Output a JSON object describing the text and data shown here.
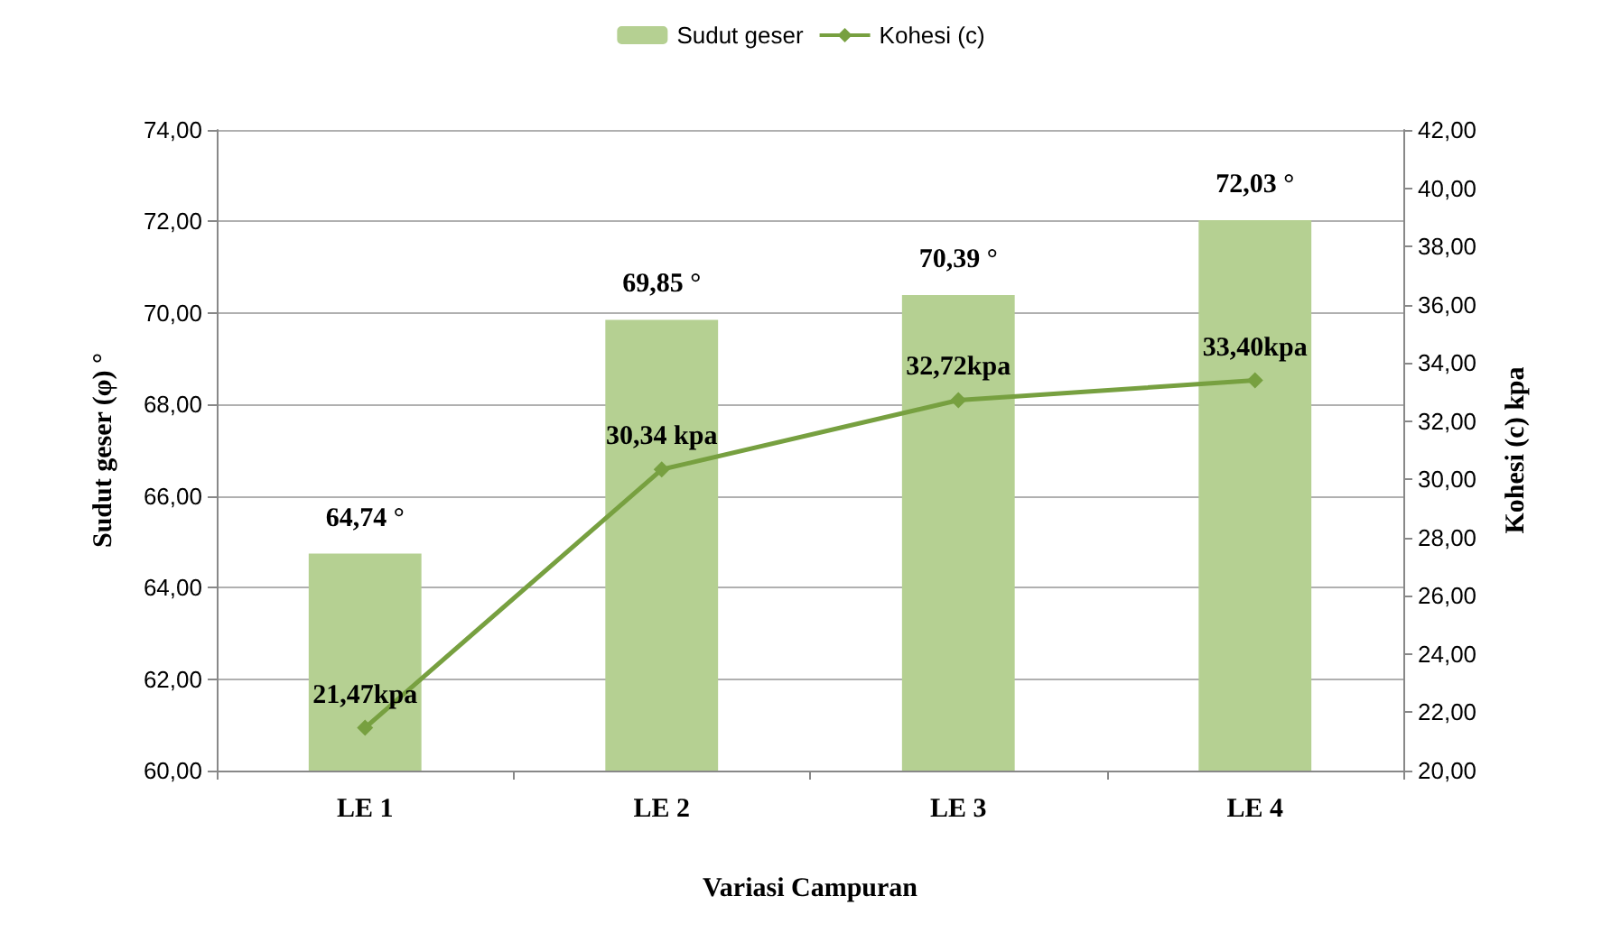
{
  "chart_data": {
    "type": "bar",
    "xlabel": "Variasi Campuran",
    "ylabel": "Sudut geser (φ) °",
    "y2label": "Kohesi (c) kpa",
    "categories": [
      "LE 1",
      "LE 2",
      "LE 3",
      "LE 4"
    ],
    "series": [
      {
        "name": "Sudut geser",
        "color": "#b5d092",
        "values": [
          64.74,
          69.85,
          70.39,
          72.03
        ],
        "value_labels": [
          "64,74 °",
          "69,85 °",
          "70,39 °",
          "72,03 °"
        ]
      },
      {
        "name": "Kohesi (c)",
        "type": "line",
        "axis": "y2",
        "color": "#77a040",
        "marker": "diamond",
        "values": [
          21.47,
          30.34,
          32.72,
          33.4
        ],
        "value_labels": [
          "21,47kpa",
          "30,34 kpa",
          "32,72kpa",
          "33,40kpa"
        ]
      }
    ],
    "ylim": [
      60,
      74
    ],
    "yticks": [
      {
        "value": 60,
        "label": "60,00"
      },
      {
        "value": 62,
        "label": "62,00"
      },
      {
        "value": 64,
        "label": "64,00"
      },
      {
        "value": 66,
        "label": "66,00"
      },
      {
        "value": 68,
        "label": "68,00"
      },
      {
        "value": 70,
        "label": "70,00"
      },
      {
        "value": 72,
        "label": "72,00"
      },
      {
        "value": 74,
        "label": "74,00"
      }
    ],
    "y2lim": [
      20,
      42
    ],
    "y2ticks": [
      {
        "value": 20,
        "label": "20,00"
      },
      {
        "value": 22,
        "label": "22,00"
      },
      {
        "value": 24,
        "label": "24,00"
      },
      {
        "value": 26,
        "label": "26,00"
      },
      {
        "value": 28,
        "label": "28,00"
      },
      {
        "value": 30,
        "label": "30,00"
      },
      {
        "value": 32,
        "label": "32,00"
      },
      {
        "value": 34,
        "label": "34,00"
      },
      {
        "value": 36,
        "label": "36,00"
      },
      {
        "value": 38,
        "label": "38,00"
      },
      {
        "value": 40,
        "label": "40,00"
      },
      {
        "value": 42,
        "label": "42,00"
      }
    ],
    "grid": "y",
    "legend": "top"
  }
}
